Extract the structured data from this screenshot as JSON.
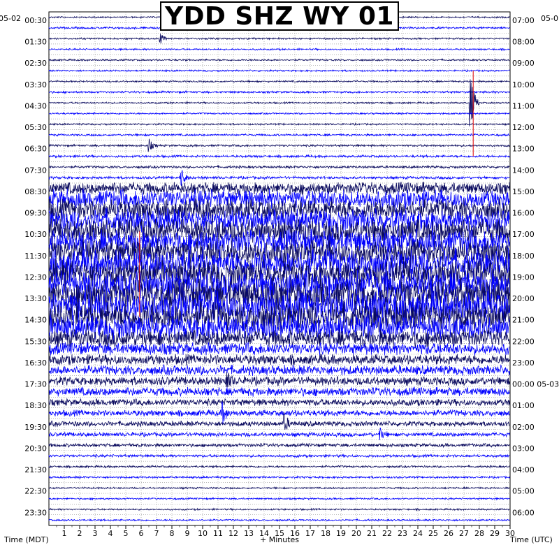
{
  "title": "YDD SHZ WY 01",
  "left_date": "05-02",
  "right_date": "05-0",
  "right_date_change": "05-03",
  "left_axis_label": "Time (MDT)",
  "right_axis_label": "Time (UTC)",
  "bottom_axis_label": "+ Minutes",
  "colors": {
    "trace_a": "#0a0a5e",
    "trace_b": "#0000ff",
    "event_marker": "#dd0000",
    "grid": "#000000",
    "background": "#ffffff"
  },
  "chart_data": {
    "type": "helicorder",
    "station": "YDD SHZ WY 01",
    "x_unit": "minutes",
    "xlim": [
      0,
      30
    ],
    "x_ticks": [
      "1",
      "2",
      "3",
      "4",
      "5",
      "6",
      "7",
      "8",
      "9",
      "10",
      "11",
      "12",
      "13",
      "14",
      "15",
      "16",
      "17",
      "18",
      "19",
      "20",
      "21",
      "22",
      "23",
      "24",
      "25",
      "26",
      "27",
      "28",
      "29",
      "30"
    ],
    "row_count": 48,
    "row_interval_minutes": 30,
    "left_tick_labels": [
      "00:30",
      "01:30",
      "02:30",
      "03:30",
      "04:30",
      "05:30",
      "06:30",
      "07:30",
      "08:30",
      "09:30",
      "10:30",
      "11:30",
      "12:30",
      "13:30",
      "14:30",
      "15:30",
      "16:30",
      "17:30",
      "18:30",
      "19:30",
      "20:30",
      "21:30",
      "22:30",
      "23:30"
    ],
    "right_tick_labels": [
      "07:00",
      "08:00",
      "09:00",
      "10:00",
      "11:00",
      "12:00",
      "13:00",
      "14:00",
      "15:00",
      "16:00",
      "17:00",
      "18:00",
      "19:00",
      "20:00",
      "21:00",
      "22:00",
      "23:00",
      "00:00",
      "01:00",
      "02:00",
      "03:00",
      "04:00",
      "05:00",
      "06:00"
    ],
    "row_amplitude": [
      0.05,
      0.06,
      0.05,
      0.05,
      0.05,
      0.05,
      0.05,
      0.06,
      0.05,
      0.05,
      0.05,
      0.06,
      0.06,
      0.07,
      0.07,
      0.08,
      0.35,
      0.55,
      0.6,
      0.65,
      0.7,
      0.7,
      0.75,
      0.8,
      0.8,
      0.85,
      0.9,
      0.9,
      0.85,
      0.7,
      0.5,
      0.35,
      0.3,
      0.28,
      0.25,
      0.25,
      0.2,
      0.18,
      0.15,
      0.12,
      0.1,
      0.08,
      0.06,
      0.06,
      0.05,
      0.05,
      0.05,
      0.05
    ],
    "events": [
      {
        "row": 0,
        "minute": 19.5,
        "amplitude": 1.2
      },
      {
        "row": 2,
        "minute": 7.2,
        "amplitude": 0.5
      },
      {
        "row": 8,
        "minute": 27.4,
        "amplitude": 2.8
      },
      {
        "row": 12,
        "minute": 6.5,
        "amplitude": 0.5
      },
      {
        "row": 15,
        "minute": 8.6,
        "amplitude": 0.8
      },
      {
        "row": 34,
        "minute": 11.5,
        "amplitude": 0.9
      },
      {
        "row": 37,
        "minute": 11.3,
        "amplitude": 0.8
      },
      {
        "row": 38,
        "minute": 15.3,
        "amplitude": 0.7
      },
      {
        "row": 39,
        "minute": 21.5,
        "amplitude": 0.5
      }
    ],
    "markers": [
      {
        "row": 7,
        "minute": 27.6
      },
      {
        "row": 22,
        "minute": 5.9
      }
    ],
    "grid": true
  }
}
